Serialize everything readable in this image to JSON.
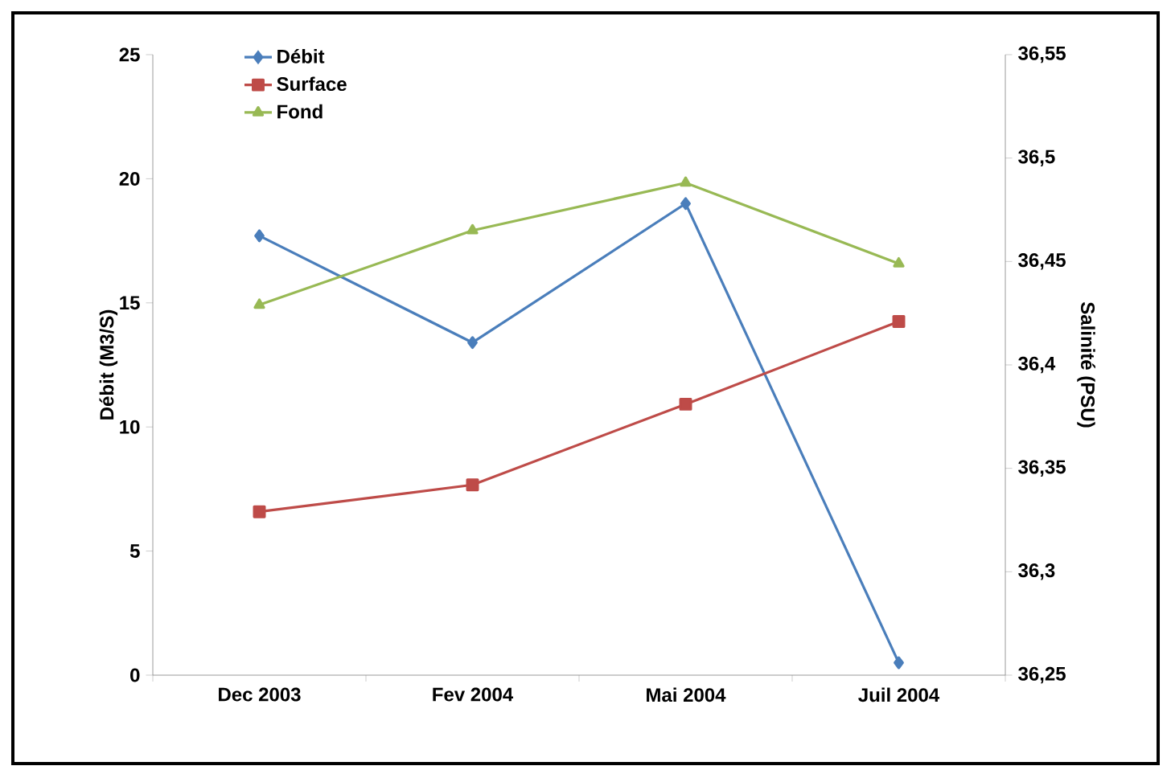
{
  "chart_data": {
    "type": "line",
    "xlabel": null,
    "ylabel": "Débit (M3/S)",
    "y2label": "Salinité (PSU)",
    "categories": [
      "Dec 2003",
      "Fev 2004",
      "Mai 2004",
      "Juil 2004"
    ],
    "series": [
      {
        "name": "Débit",
        "color": "#4a7ebb",
        "marker": "diamond",
        "values": [
          17.7,
          13.4,
          19.0,
          0.5
        ]
      },
      {
        "name": "Surface",
        "color": "#be4b48",
        "marker": "square",
        "axis": "y2",
        "values": [
          36.329,
          36.342,
          36.381,
          36.421
        ]
      },
      {
        "name": "Fond",
        "color": "#98b954",
        "marker": "triangle",
        "axis": "y2",
        "values": [
          36.429,
          36.465,
          36.488,
          36.449
        ]
      }
    ],
    "ylim": [
      0,
      25
    ],
    "yticks": [
      0,
      5,
      10,
      15,
      20,
      25
    ],
    "y2lim": [
      36.25,
      36.55
    ],
    "y2ticks": [
      {
        "value": 36.25,
        "label": "36,25"
      },
      {
        "value": 36.3,
        "label": "36,3"
      },
      {
        "value": 36.35,
        "label": "36,35"
      },
      {
        "value": 36.4,
        "label": "36,4"
      },
      {
        "value": 36.45,
        "label": "36,45"
      },
      {
        "value": 36.5,
        "label": "36,5"
      },
      {
        "value": 36.55,
        "label": "36,55"
      }
    ],
    "grid": false,
    "legend": "top left"
  }
}
